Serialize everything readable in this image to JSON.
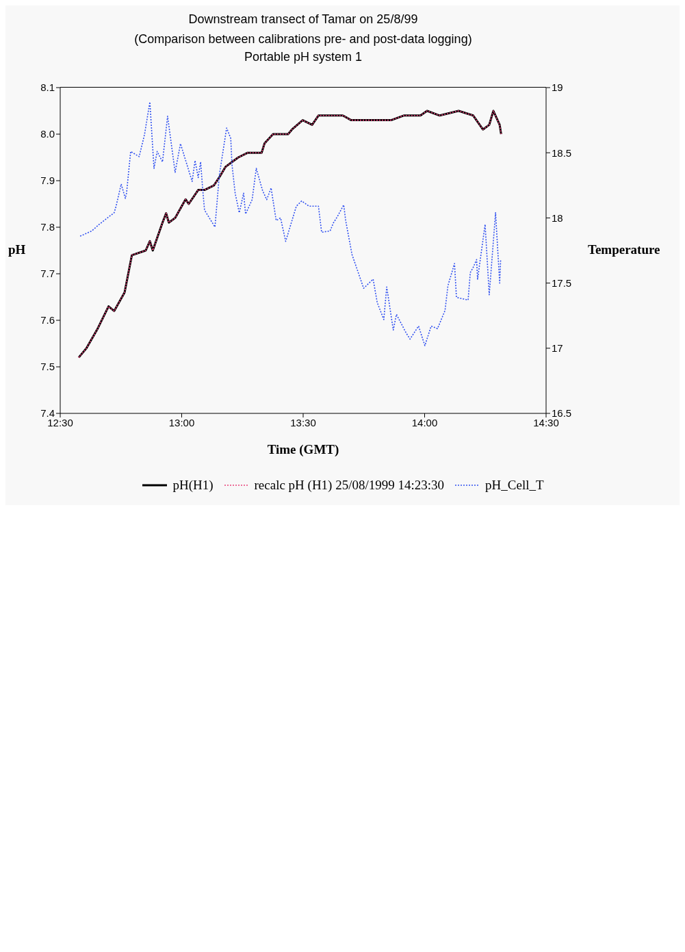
{
  "chart_data": {
    "type": "line",
    "title": "Downstream transect of Tamar on 25/8/99",
    "subtitle": "(Comparison between calibrations pre- and post-data logging)\nPortable pH system 1",
    "xlabel": "Time (GMT)",
    "ylabel": "pH",
    "y2label": "Temperature",
    "x": [
      12.576,
      12.608,
      12.652,
      12.699,
      12.722,
      12.765,
      12.78,
      12.795,
      12.852,
      12.869,
      12.881,
      12.921,
      12.936,
      12.947,
      12.973,
      13.016,
      13.029,
      13.068,
      13.094,
      13.133,
      13.158,
      13.181,
      13.207,
      13.233,
      13.272,
      13.329,
      13.341,
      13.376,
      13.438,
      13.454,
      13.498,
      13.537,
      13.563,
      13.602,
      13.62,
      13.663,
      13.698,
      13.74,
      13.827,
      13.862,
      13.914,
      13.983,
      14.01,
      14.062,
      14.14,
      14.2,
      14.24,
      14.266,
      14.283,
      14.309,
      14.315
    ],
    "series": [
      {
        "name": "pH(H1)",
        "color": "#000000",
        "line_style": "solid",
        "values": [
          7.52,
          7.54,
          7.58,
          7.63,
          7.62,
          7.66,
          7.7,
          7.74,
          7.75,
          7.77,
          7.75,
          7.81,
          7.83,
          7.81,
          7.82,
          7.86,
          7.85,
          7.88,
          7.88,
          7.89,
          7.91,
          7.93,
          7.94,
          7.95,
          7.96,
          7.96,
          7.98,
          8.0,
          8.0,
          8.01,
          8.03,
          8.02,
          8.04,
          8.04,
          8.04,
          8.04,
          8.03,
          8.03,
          8.03,
          8.03,
          8.04,
          8.04,
          8.05,
          8.04,
          8.05,
          8.04,
          8.01,
          8.02,
          8.05,
          8.02,
          8.0
        ]
      },
      {
        "name": "recalc pH (H1) 25/08/1999 14:23:30",
        "color": "#e8407a",
        "line_style": "dotted",
        "values": [
          7.52,
          7.54,
          7.58,
          7.63,
          7.62,
          7.66,
          7.7,
          7.74,
          7.75,
          7.77,
          7.75,
          7.81,
          7.83,
          7.81,
          7.82,
          7.86,
          7.85,
          7.88,
          7.88,
          7.89,
          7.91,
          7.93,
          7.94,
          7.95,
          7.96,
          7.96,
          7.98,
          8.0,
          8.0,
          8.01,
          8.03,
          8.02,
          8.04,
          8.04,
          8.04,
          8.04,
          8.03,
          8.03,
          8.03,
          8.03,
          8.04,
          8.04,
          8.05,
          8.04,
          8.05,
          8.04,
          8.01,
          8.02,
          8.05,
          8.02,
          8.0
        ]
      },
      {
        "name": "pH_Cell_T",
        "color": "#3050f0",
        "line_style": "dotted",
        "axis": "y2",
        "x": [
          12.582,
          12.63,
          12.66,
          12.722,
          12.73,
          12.751,
          12.768,
          12.773,
          12.79,
          12.825,
          12.847,
          12.869,
          12.886,
          12.899,
          12.921,
          12.942,
          12.973,
          12.995,
          13.043,
          13.055,
          13.068,
          13.078,
          13.086,
          13.094,
          13.137,
          13.155,
          13.185,
          13.202,
          13.207,
          13.22,
          13.237,
          13.255,
          13.263,
          13.29,
          13.307,
          13.333,
          13.35,
          13.368,
          13.389,
          13.407,
          13.428,
          13.472,
          13.494,
          13.524,
          13.563,
          13.576,
          13.611,
          13.624,
          13.641,
          13.667,
          13.675,
          13.701,
          13.749,
          13.788,
          13.805,
          13.832,
          13.844,
          13.871,
          13.884,
          13.923,
          13.94,
          13.975,
          14.001,
          14.027,
          14.053,
          14.084,
          14.096,
          14.123,
          14.131,
          14.179,
          14.188,
          14.2,
          14.214,
          14.218,
          14.249,
          14.266,
          14.292,
          14.309,
          14.313
        ],
        "values": [
          17.86,
          17.9,
          17.95,
          18.04,
          18.09,
          18.26,
          18.15,
          18.19,
          18.51,
          18.47,
          18.64,
          18.89,
          18.38,
          18.51,
          18.43,
          18.78,
          18.35,
          18.57,
          18.28,
          18.44,
          18.31,
          18.43,
          18.23,
          18.06,
          17.93,
          18.33,
          18.69,
          18.61,
          18.41,
          18.19,
          18.04,
          18.19,
          18.03,
          18.14,
          18.38,
          18.21,
          18.14,
          18.23,
          17.98,
          18.0,
          17.82,
          18.09,
          18.13,
          18.09,
          18.09,
          17.89,
          17.9,
          17.96,
          18.01,
          18.1,
          17.98,
          17.72,
          17.46,
          17.53,
          17.35,
          17.22,
          17.47,
          17.14,
          17.26,
          17.12,
          17.07,
          17.17,
          17.02,
          17.17,
          17.15,
          17.29,
          17.48,
          17.65,
          17.39,
          17.37,
          17.58,
          17.62,
          17.68,
          17.53,
          17.95,
          17.41,
          18.04,
          17.5,
          17.68
        ]
      }
    ],
    "xlim": [
      12.5,
      14.5
    ],
    "xticks": [
      {
        "value": 12.5,
        "label": "12:30"
      },
      {
        "value": 13,
        "label": "13:00"
      },
      {
        "value": 13.5,
        "label": "13:30"
      },
      {
        "value": 14,
        "label": "14:00"
      },
      {
        "value": 14.5,
        "label": "14:30"
      }
    ],
    "ylim": [
      7.4,
      8.1
    ],
    "yticks": [
      7.4,
      7.5,
      7.6,
      7.7,
      7.8,
      7.9,
      {
        "value": 8,
        "label": "8.0"
      },
      8.1
    ],
    "y2lim": [
      16.5,
      19
    ],
    "y2ticks": [
      16.5,
      17,
      17.5,
      18,
      18.5,
      19
    ],
    "legend": "bottom",
    "marker": "none"
  }
}
